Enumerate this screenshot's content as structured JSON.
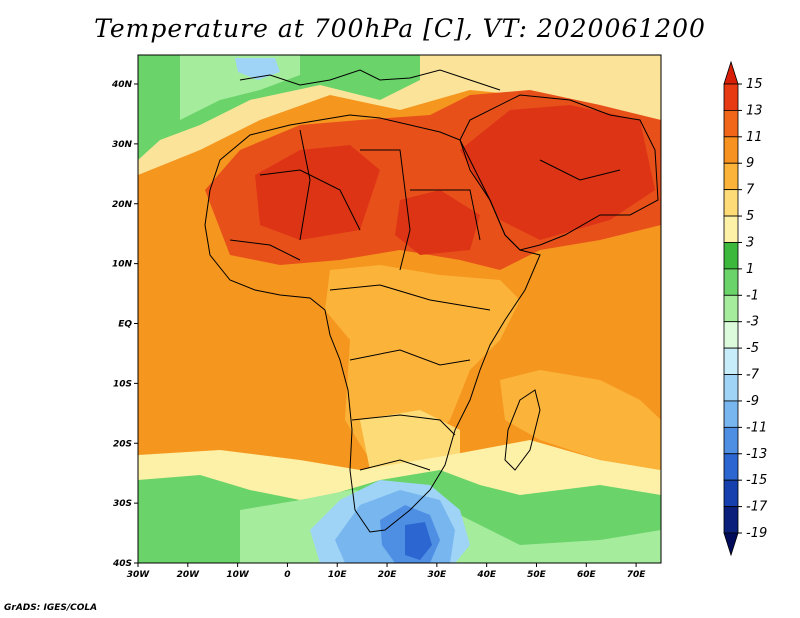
{
  "title": "Temperature at 700hPa [C], VT: 2020061200",
  "credit": "GrADS: IGES/COLA",
  "map": {
    "lon_range": [
      -30,
      75
    ],
    "lat_range": [
      -40,
      45
    ],
    "lon_ticks": [
      "30W",
      "20W",
      "10W",
      "0",
      "10E",
      "20E",
      "30E",
      "40E",
      "50E",
      "60E",
      "70E"
    ],
    "lat_ticks": [
      "40N",
      "30N",
      "20N",
      "10N",
      "EQ",
      "10S",
      "20S",
      "30S",
      "40S"
    ]
  },
  "colorbar": {
    "labels": [
      "15",
      "13",
      "11",
      "9",
      "7",
      "5",
      "3",
      "1",
      "-1",
      "-3",
      "-5",
      "-7",
      "-9",
      "-11",
      "-13",
      "-15",
      "-17",
      "-19"
    ],
    "colors": [
      "#d81e06",
      "#e83a12",
      "#f2661a",
      "#f7911f",
      "#fbb33a",
      "#fddc78",
      "#fdf1a8",
      "#3cb93c",
      "#6ad36a",
      "#a5ec9c",
      "#dcfadc",
      "#c7ecfa",
      "#9fd4f7",
      "#78b6ef",
      "#4f8fe3",
      "#2b66d1",
      "#1640ad",
      "#0a207a",
      "#000c5a"
    ]
  },
  "fields": {
    "ocean_warm": "#f5961f",
    "land_base": "#fdd27a",
    "hot_core": "#de3416",
    "very_hot": "#e8501a",
    "mild": "#fbe49a",
    "cool_green": "#7fd97c",
    "deep_green": "#3cb93c",
    "cold": "#78b6ef",
    "colder": "#4f8fe3",
    "coldest": "#2b66d1"
  }
}
